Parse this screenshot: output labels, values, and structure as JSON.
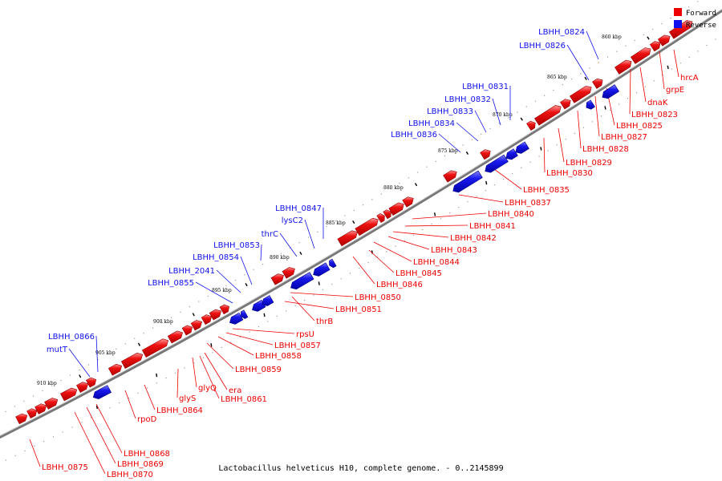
{
  "colors": {
    "forward": "#ee0000",
    "reverse": "#1010ee",
    "backbone": "#888888"
  },
  "legend": {
    "forward": "Forward",
    "reverse": "Reverse"
  },
  "caption": "Lactobacillus helveticus H10, complete genome. - 0..2145899",
  "axis": {
    "ticks": [
      "860 kbp",
      "865 kbp",
      "870 kbp",
      "875 kbp",
      "880 kbp",
      "885 kbp",
      "890 kbp",
      "895 kbp",
      "900 kbp",
      "905 kbp",
      "910 kbp"
    ]
  },
  "genes": [
    {
      "name": "hrcA",
      "strand": "forward"
    },
    {
      "name": "grpE",
      "strand": "forward"
    },
    {
      "name": "dnaK",
      "strand": "forward"
    },
    {
      "name": "LBHH_0823",
      "strand": "forward"
    },
    {
      "name": "LBHH_0824",
      "strand": "reverse"
    },
    {
      "name": "LBHH_0825",
      "strand": "forward"
    },
    {
      "name": "LBHH_0826",
      "strand": "reverse"
    },
    {
      "name": "LBHH_0827",
      "strand": "forward"
    },
    {
      "name": "LBHH_0828",
      "strand": "forward"
    },
    {
      "name": "LBHH_0829",
      "strand": "forward"
    },
    {
      "name": "LBHH_0830",
      "strand": "forward"
    },
    {
      "name": "LBHH_0831",
      "strand": "reverse"
    },
    {
      "name": "LBHH_0832",
      "strand": "reverse"
    },
    {
      "name": "LBHH_0833",
      "strand": "reverse"
    },
    {
      "name": "LBHH_0834",
      "strand": "reverse"
    },
    {
      "name": "LBHH_0835",
      "strand": "forward"
    },
    {
      "name": "LBHH_0836",
      "strand": "reverse"
    },
    {
      "name": "LBHH_0837",
      "strand": "forward"
    },
    {
      "name": "LBHH_0840",
      "strand": "forward"
    },
    {
      "name": "LBHH_0841",
      "strand": "forward"
    },
    {
      "name": "LBHH_0842",
      "strand": "forward"
    },
    {
      "name": "LBHH_0843",
      "strand": "forward"
    },
    {
      "name": "LBHH_0844",
      "strand": "forward"
    },
    {
      "name": "LBHH_0845",
      "strand": "forward"
    },
    {
      "name": "LBHH_0846",
      "strand": "forward"
    },
    {
      "name": "LBHH_0847",
      "strand": "reverse"
    },
    {
      "name": "lysC2",
      "strand": "reverse"
    },
    {
      "name": "thrC",
      "strand": "reverse"
    },
    {
      "name": "LBHH_0850",
      "strand": "forward"
    },
    {
      "name": "LBHH_0851",
      "strand": "forward"
    },
    {
      "name": "thrB",
      "strand": "forward"
    },
    {
      "name": "LBHH_0853",
      "strand": "reverse"
    },
    {
      "name": "LBHH_0854",
      "strand": "reverse"
    },
    {
      "name": "LBHH_2041",
      "strand": "reverse"
    },
    {
      "name": "LBHH_0855",
      "strand": "reverse"
    },
    {
      "name": "rpsU",
      "strand": "forward"
    },
    {
      "name": "LBHH_0857",
      "strand": "forward"
    },
    {
      "name": "LBHH_0858",
      "strand": "forward"
    },
    {
      "name": "LBHH_0859",
      "strand": "forward"
    },
    {
      "name": "era",
      "strand": "forward"
    },
    {
      "name": "LBHH_0861",
      "strand": "forward"
    },
    {
      "name": "glyQ",
      "strand": "forward"
    },
    {
      "name": "glyS",
      "strand": "forward"
    },
    {
      "name": "LBHH_0864",
      "strand": "forward"
    },
    {
      "name": "rpoD",
      "strand": "forward"
    },
    {
      "name": "LBHH_0866",
      "strand": "reverse"
    },
    {
      "name": "mutT",
      "strand": "reverse"
    },
    {
      "name": "LBHH_0868",
      "strand": "forward"
    },
    {
      "name": "LBHH_0869",
      "strand": "forward"
    },
    {
      "name": "LBHH_0870",
      "strand": "forward"
    },
    {
      "name": "LBHH_0875",
      "strand": "forward"
    }
  ]
}
